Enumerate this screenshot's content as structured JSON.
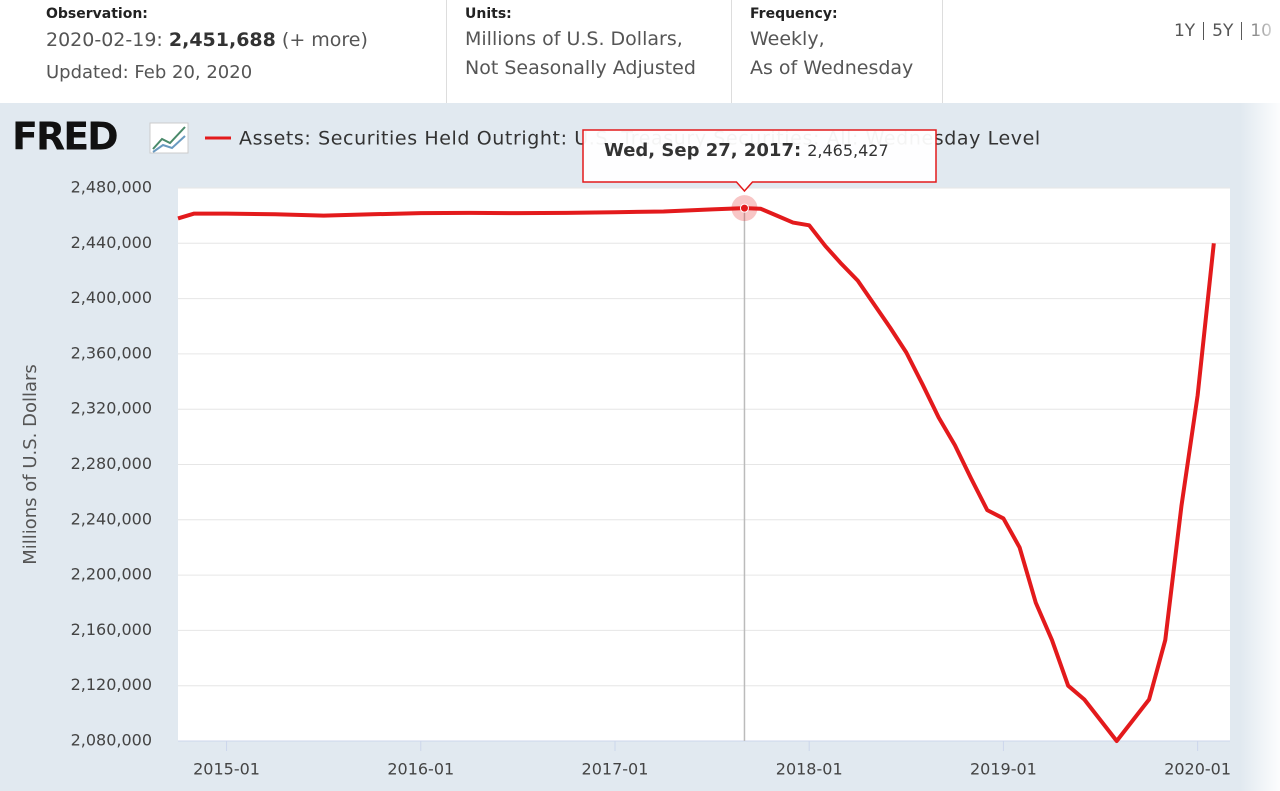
{
  "header": {
    "observation": {
      "label": "Observation:",
      "date": "2020-02-19:",
      "value": "2,451,688",
      "more": "(+ more)",
      "updated": "Updated: Feb 20, 2020"
    },
    "units": {
      "label": "Units:",
      "line1": "Millions of U.S. Dollars,",
      "line2": "Not Seasonally Adjusted"
    },
    "frequency": {
      "label": "Frequency:",
      "line1": "Weekly,",
      "line2": "As of Wednesday"
    },
    "ranges": [
      "1Y",
      "5Y",
      "10"
    ]
  },
  "logo": "FRED",
  "chart_data": {
    "type": "line",
    "ylabel": "Millions of U.S. Dollars",
    "x": [
      "2014-10",
      "2014-11",
      "2015-01",
      "2015-04",
      "2015-07",
      "2015-10",
      "2016-01",
      "2016-04",
      "2016-07",
      "2016-10",
      "2017-01",
      "2017-04",
      "2017-07",
      "2017-09",
      "2017-10",
      "2017-11",
      "2017-12",
      "2018-01",
      "2018-02",
      "2018-03",
      "2018-04",
      "2018-05",
      "2018-06",
      "2018-07",
      "2018-08",
      "2018-09",
      "2018-10",
      "2018-11",
      "2018-12",
      "2019-01",
      "2019-02",
      "2019-03",
      "2019-04",
      "2019-05",
      "2019-06",
      "2019-07",
      "2019-08",
      "2019-09",
      "2019-10",
      "2019-11",
      "2019-12",
      "2020-01",
      "2020-02"
    ],
    "series": [
      {
        "name": "Assets: Securities Held Outright: U.S. Treasury Securities: All: Wednesday Level",
        "color": "#e31a1c",
        "values": [
          2458000,
          2461500,
          2461500,
          2461000,
          2460000,
          2461000,
          2461800,
          2462000,
          2461800,
          2462000,
          2462500,
          2463000,
          2464500,
          2465427,
          2465000,
          2460000,
          2455000,
          2453000,
          2438000,
          2425000,
          2413000,
          2396000,
          2379000,
          2361000,
          2338000,
          2314000,
          2294000,
          2270000,
          2247000,
          2241000,
          2220000,
          2180000,
          2153000,
          2120000,
          2110000,
          2095000,
          2080000,
          2095000,
          2110000,
          2153000,
          2250000,
          2330000,
          2440000
        ]
      }
    ],
    "xlim": [
      "2014-10",
      "2020-03"
    ],
    "xticks": [
      "2015-01",
      "2016-01",
      "2017-01",
      "2018-01",
      "2019-01",
      "2020-01"
    ],
    "ylim": [
      2080000,
      2480000
    ],
    "yticks": [
      {
        "value": 2080000,
        "label": "2,080,000"
      },
      {
        "value": 2120000,
        "label": "2,120,000"
      },
      {
        "value": 2160000,
        "label": "2,160,000"
      },
      {
        "value": 2200000,
        "label": "2,200,000"
      },
      {
        "value": 2240000,
        "label": "2,240,000"
      },
      {
        "value": 2280000,
        "label": "2,280,000"
      },
      {
        "value": 2320000,
        "label": "2,320,000"
      },
      {
        "value": 2360000,
        "label": "2,360,000"
      },
      {
        "value": 2400000,
        "label": "2,400,000"
      },
      {
        "value": 2440000,
        "label": "2,440,000"
      },
      {
        "value": 2480000,
        "label": "2,480,000"
      }
    ],
    "grid": true,
    "tooltip": {
      "label": "Wed, Sep 27, 2017:",
      "x": "2017-09",
      "value": 2465427,
      "value_label": "2,465,427"
    }
  }
}
